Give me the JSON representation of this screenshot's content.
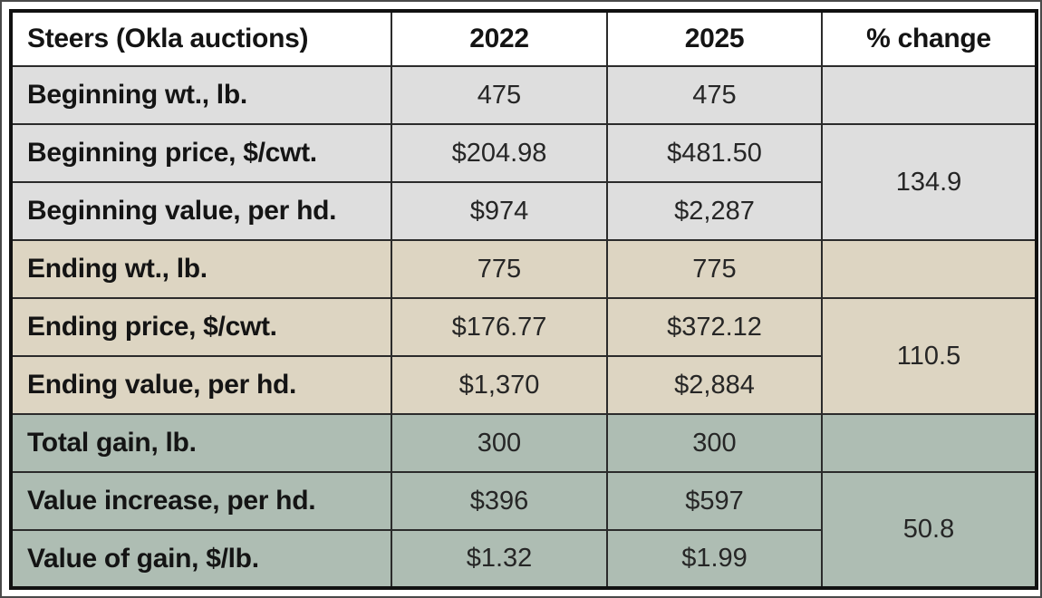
{
  "chart_data": {
    "type": "table",
    "title": "Steers (Okla auctions)",
    "columns": [
      "Steers (Okla auctions)",
      "2022",
      "2025",
      "% change"
    ],
    "rows": [
      {
        "label": "Beginning wt., lb.",
        "y2022": "475",
        "y2025": "475",
        "pct": ""
      },
      {
        "label": "Beginning price, $/cwt.",
        "y2022": "$204.98",
        "y2025": "$481.50",
        "pct": "134.9"
      },
      {
        "label": "Beginning value, per hd.",
        "y2022": "$974",
        "y2025": "$2,287",
        "pct": "134.9"
      },
      {
        "label": "Ending wt., lb.",
        "y2022": "775",
        "y2025": "775",
        "pct": ""
      },
      {
        "label": "Ending price, $/cwt.",
        "y2022": "$176.77",
        "y2025": "$372.12",
        "pct": "110.5"
      },
      {
        "label": "Ending value, per hd.",
        "y2022": "$1,370",
        "y2025": "$2,884",
        "pct": "110.5"
      },
      {
        "label": "Total gain, lb.",
        "y2022": "300",
        "y2025": "300",
        "pct": ""
      },
      {
        "label": "Value increase, per hd.",
        "y2022": "$396",
        "y2025": "$597",
        "pct": "50.8"
      },
      {
        "label": "Value of gain, $/lb.",
        "y2022": "$1.32",
        "y2025": "$1.99",
        "pct": "50.8"
      }
    ],
    "pct_changes": {
      "beginning": "134.9",
      "ending": "110.5",
      "gain": "50.8"
    },
    "layout_notes": {
      "merged_pct_cells": "pct change value spans the price and value rows of each section; wt/gain rows have empty pct cells",
      "sections": [
        "beginning: rows 0-2",
        "ending: rows 3-5",
        "gain: rows 6-8"
      ]
    }
  },
  "colors": {
    "header_bg": "#ffffff",
    "beginning_section_bg": "#dedede",
    "ending_section_bg": "#ddd5c2",
    "gain_section_bg": "#aebdb3",
    "inner_border": "#2b2b2b",
    "outer_border": "#111111",
    "page_frame": "#4a4a4a",
    "label_text": "#141414",
    "value_text": "#262626"
  }
}
